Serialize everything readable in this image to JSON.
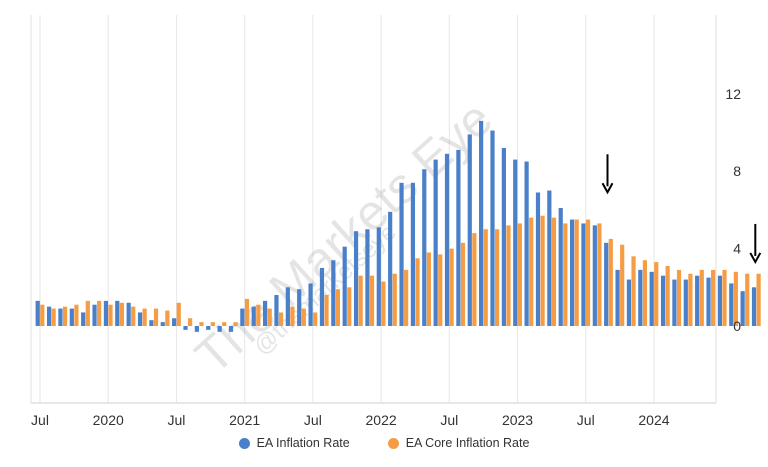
{
  "chart_data": {
    "type": "bar",
    "watermark": "The Markets Eye",
    "watermark_sub": "@themarketseye",
    "yticks": [
      12,
      8,
      4,
      0
    ],
    "ylim": [
      -4,
      16
    ],
    "grid": "vertical lines at x tick labels",
    "x_ticks": [
      "Jul",
      "2020",
      "Jul",
      "2021",
      "Jul",
      "2022",
      "Jul",
      "2023",
      "Jul",
      "2024"
    ],
    "categories": [
      "2019-07",
      "2019-08",
      "2019-09",
      "2019-10",
      "2019-11",
      "2019-12",
      "2020-01",
      "2020-02",
      "2020-03",
      "2020-04",
      "2020-05",
      "2020-06",
      "2020-07",
      "2020-08",
      "2020-09",
      "2020-10",
      "2020-11",
      "2020-12",
      "2021-01",
      "2021-02",
      "2021-03",
      "2021-04",
      "2021-05",
      "2021-06",
      "2021-07",
      "2021-08",
      "2021-09",
      "2021-10",
      "2021-11",
      "2021-12",
      "2022-01",
      "2022-02",
      "2022-03",
      "2022-04",
      "2022-05",
      "2022-06",
      "2022-07",
      "2022-08",
      "2022-09",
      "2022-10",
      "2022-11",
      "2022-12",
      "2023-01",
      "2023-02",
      "2023-03",
      "2023-04",
      "2023-05",
      "2023-06",
      "2023-07",
      "2023-08",
      "2023-09",
      "2023-10",
      "2023-11",
      "2023-12",
      "2024-01",
      "2024-02",
      "2024-03",
      "2024-04",
      "2024-05",
      "2024-06",
      "2024-07",
      "2024-08",
      "2024-09",
      "2024-10"
    ],
    "series": [
      {
        "name": "EA Inflation Rate",
        "color": "#4a7fc9",
        "values": [
          1.3,
          1.0,
          0.9,
          0.9,
          0.7,
          1.1,
          1.3,
          1.3,
          1.2,
          0.7,
          0.3,
          0.2,
          0.4,
          -0.2,
          -0.3,
          -0.2,
          -0.3,
          -0.3,
          0.9,
          1.0,
          1.3,
          1.6,
          2.0,
          1.9,
          2.2,
          3.0,
          3.4,
          4.1,
          4.9,
          5.0,
          5.1,
          5.9,
          7.4,
          7.4,
          8.1,
          8.6,
          8.9,
          9.1,
          9.9,
          10.6,
          10.1,
          9.2,
          8.6,
          8.5,
          6.9,
          7.0,
          6.1,
          5.5,
          5.3,
          5.2,
          4.3,
          2.9,
          2.4,
          2.9,
          2.8,
          2.6,
          2.4,
          2.4,
          2.6,
          2.5,
          2.6,
          2.2,
          1.8,
          2.0
        ]
      },
      {
        "name": "EA Core Inflation Rate",
        "color": "#f59d45",
        "values": [
          1.1,
          0.9,
          1.0,
          1.1,
          1.3,
          1.3,
          1.1,
          1.2,
          1.0,
          0.9,
          0.9,
          0.8,
          1.2,
          0.4,
          0.2,
          0.2,
          0.2,
          0.2,
          1.4,
          1.1,
          0.9,
          0.7,
          1.0,
          0.9,
          0.7,
          1.6,
          1.9,
          2.0,
          2.6,
          2.6,
          2.3,
          2.7,
          2.9,
          3.5,
          3.8,
          3.7,
          4.0,
          4.3,
          4.8,
          5.0,
          5.0,
          5.2,
          5.3,
          5.6,
          5.7,
          5.6,
          5.3,
          5.5,
          5.5,
          5.3,
          4.5,
          4.2,
          3.6,
          3.4,
          3.3,
          3.1,
          2.9,
          2.7,
          2.9,
          2.9,
          2.9,
          2.8,
          2.7,
          2.7
        ]
      }
    ],
    "annotations": [
      "down-arrow above 2023-09",
      "down-arrow above 2024-10"
    ]
  },
  "legend": [
    {
      "label": "EA Inflation Rate",
      "color": "#4a7fc9"
    },
    {
      "label": "EA Core Inflation Rate",
      "color": "#f59d45"
    }
  ]
}
